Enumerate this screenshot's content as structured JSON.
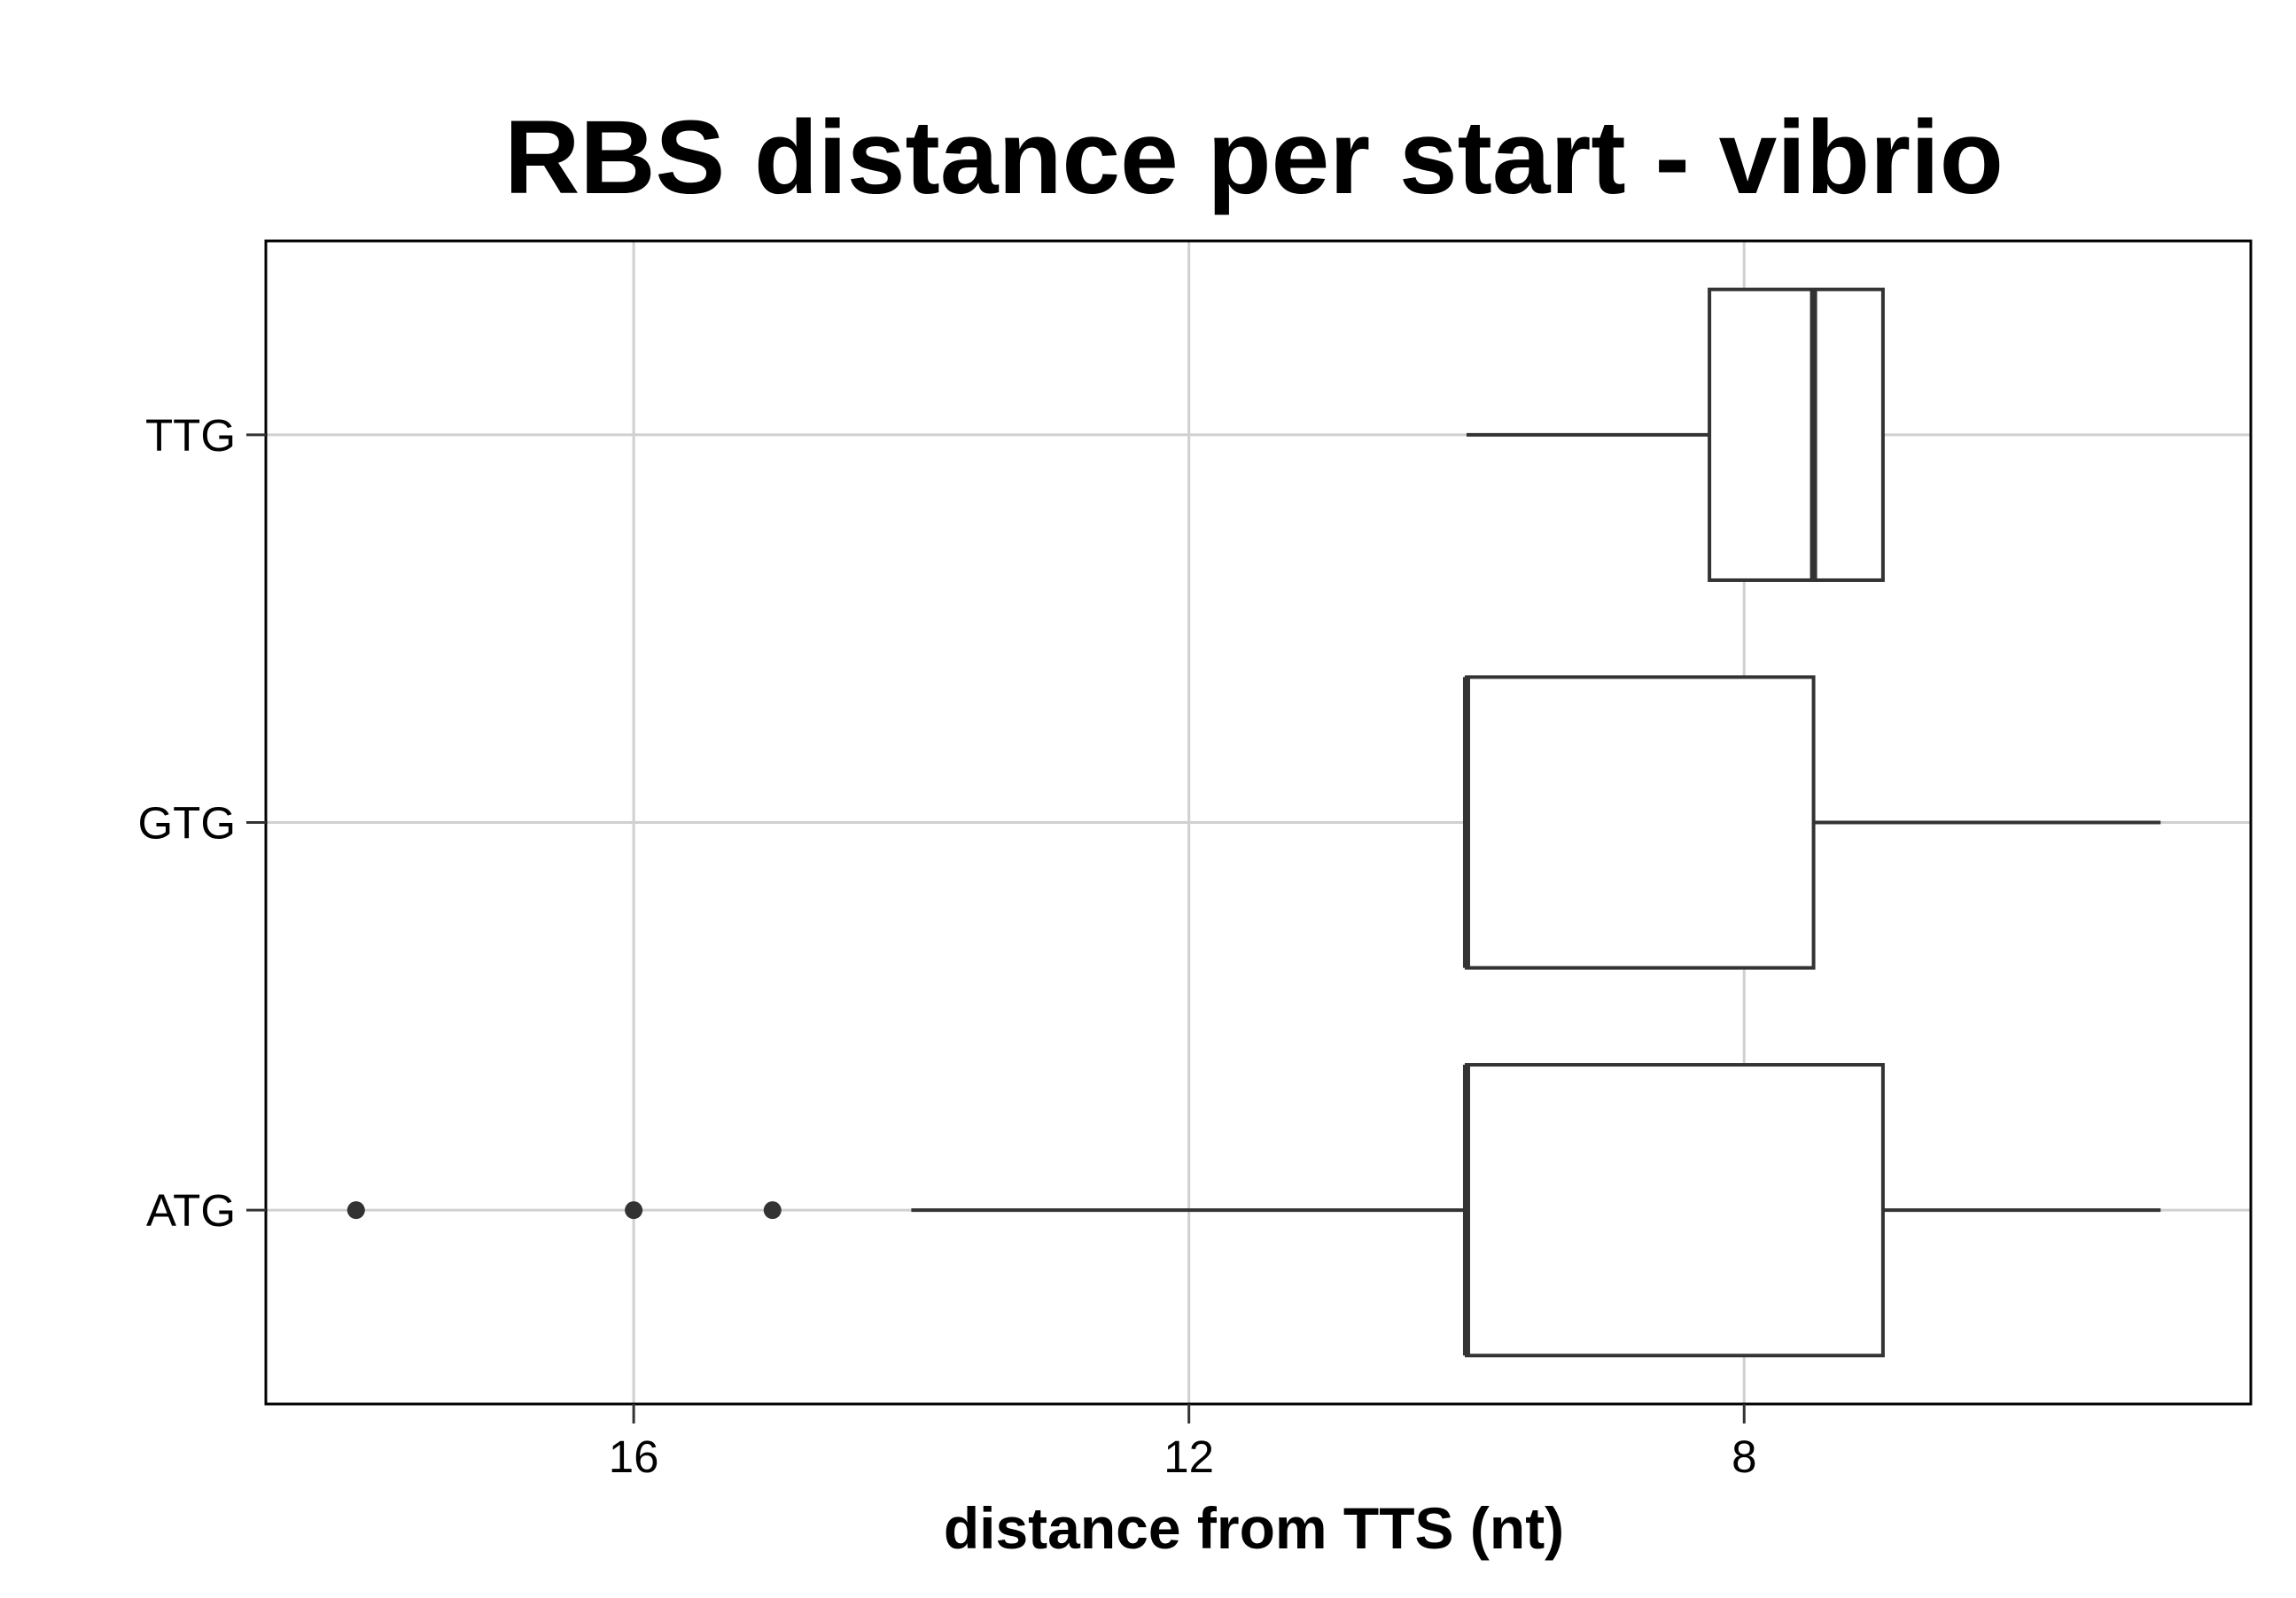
{
  "chart_data": {
    "type": "boxplot",
    "orientation": "horizontal",
    "title": "RBS distance per start - vibrio",
    "xlabel": "distance from TTS (nt)",
    "ylabel": "",
    "x_reversed": true,
    "xlim": [
      18.65,
      4.35
    ],
    "x_ticks": [
      16,
      12,
      8
    ],
    "x_tick_labels": [
      "16",
      "12",
      "8"
    ],
    "grid": true,
    "categories": [
      "ATG",
      "GTG",
      "TTG"
    ],
    "boxes": [
      {
        "category": "ATG",
        "whisker_low": 5,
        "q1": 7,
        "median": 10,
        "q3": 10,
        "whisker_high": 14,
        "outliers": [
          15,
          16,
          18
        ]
      },
      {
        "category": "GTG",
        "whisker_low": 5,
        "q1": 7.5,
        "median": 10,
        "q3": 10,
        "whisker_high": 10,
        "outliers": []
      },
      {
        "category": "TTG",
        "whisker_low": 7,
        "q1": 7,
        "median": 7.5,
        "q3": 8.25,
        "whisker_high": 10,
        "outliers": []
      }
    ],
    "colors": {
      "box_stroke": "#333333",
      "box_fill": "#ffffff",
      "grid": "#d0d0d0",
      "frame": "#000000",
      "outlier": "#333333"
    }
  }
}
